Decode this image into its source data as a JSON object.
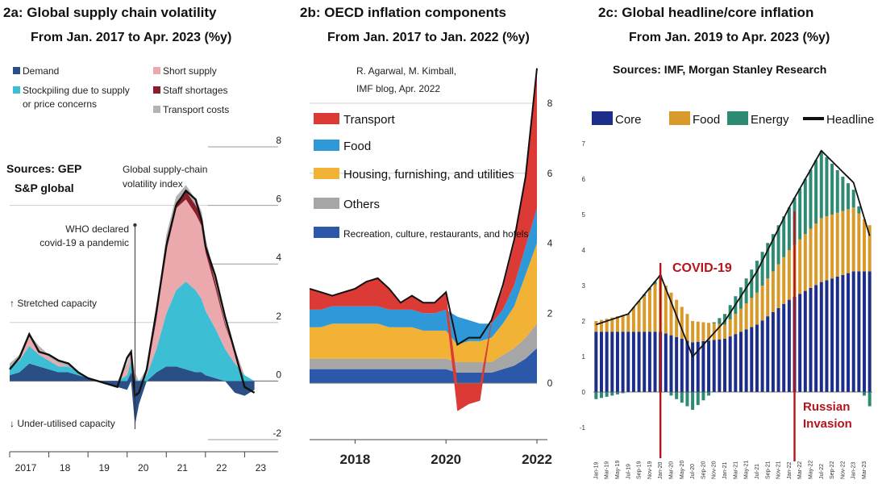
{
  "panels": [
    {
      "title": "2a: Global supply chain volatility",
      "subtitle": "From Jan. 2017 to Apr. 2023  (%y)",
      "sources": [
        "Sources: GEP",
        "S&P global"
      ],
      "index_label": [
        "Global supply-chain",
        "volatility index"
      ],
      "who_label": [
        "WHO declared",
        "covid-19 a pandemic"
      ],
      "stretched_label": "↑ Stretched capacity",
      "underutilised_label": "↓ Under-utilised capacity"
    },
    {
      "title": "2b: OECD inflation components",
      "subtitle": "From Jan. 2017 to Jan. 2022 (%y)",
      "credit": [
        "R. Agarwal, M. Kimball,",
        "IMF blog, Apr. 2022"
      ]
    },
    {
      "title": "2c: Global headline/core inflation",
      "subtitle": "From Jan. 2019 to Apr. 2023 (%y)",
      "sources": "Sources: IMF, Morgan Stanley Research",
      "covid_label": "COVID-19",
      "russia_label": [
        "Russian",
        "Invasion"
      ]
    }
  ],
  "chart_data": [
    {
      "type": "area",
      "stacked": true,
      "ylim": [
        -2,
        8
      ],
      "yticks": [
        "8",
        "6",
        "4",
        "2",
        "0",
        "-2"
      ],
      "xticks": [
        "2017",
        "18",
        "19",
        "20",
        "21",
        "22",
        "23"
      ],
      "legend_placement": "top",
      "colors": {
        "Demand": "#2a4e86",
        "Stockpiling due to supply or price concerns": "#3cbfd4",
        "Short supply": "#eba9ad",
        "Staff shortages": "#8a1f2b",
        "Transport costs": "#b4b4b4",
        "index": "#111111"
      },
      "x": [
        2017.0,
        2017.25,
        2017.5,
        2017.75,
        2018.0,
        2018.25,
        2018.5,
        2018.75,
        2019.0,
        2019.25,
        2019.5,
        2019.75,
        2020.0,
        2020.1,
        2020.2,
        2020.3,
        2020.5,
        2020.75,
        2021.0,
        2021.25,
        2021.5,
        2021.75,
        2021.9,
        2022.0,
        2022.25,
        2022.5,
        2022.75,
        2023.0,
        2023.25
      ],
      "series": [
        {
          "name": "Demand",
          "values": [
            0.2,
            0.3,
            0.6,
            0.5,
            0.4,
            0.3,
            0.3,
            0.2,
            0.1,
            0.0,
            -0.1,
            -0.2,
            -0.3,
            0.3,
            -1.5,
            -0.8,
            0.0,
            0.3,
            0.5,
            0.5,
            0.4,
            0.3,
            0.3,
            0.2,
            0.1,
            0.0,
            -0.4,
            -0.5,
            -0.3
          ]
        },
        {
          "name": "Stockpiling due to supply or price concerns",
          "values": [
            0.3,
            0.4,
            0.6,
            0.4,
            0.3,
            0.2,
            0.2,
            0.1,
            0.0,
            0.0,
            0.0,
            0.0,
            0.2,
            0.4,
            0.1,
            0.0,
            0.2,
            0.8,
            1.8,
            2.6,
            3.0,
            2.8,
            2.5,
            2.2,
            1.7,
            1.1,
            0.6,
            0.2,
            0.0
          ]
        },
        {
          "name": "Short supply",
          "values": [
            0.0,
            0.1,
            0.3,
            0.2,
            0.1,
            0.1,
            0.0,
            0.0,
            0.0,
            0.0,
            0.0,
            0.0,
            0.3,
            0.3,
            0.2,
            0.0,
            0.1,
            1.0,
            2.3,
            2.8,
            2.8,
            2.6,
            2.5,
            2.0,
            1.4,
            0.8,
            0.4,
            0.0,
            0.0
          ]
        },
        {
          "name": "Staff shortages",
          "values": [
            0,
            0,
            0,
            0,
            0,
            0,
            0,
            0,
            0,
            0,
            0,
            0,
            0,
            0,
            0,
            0,
            0,
            0.1,
            0.2,
            0.2,
            0.3,
            0.3,
            0.3,
            0.3,
            0.2,
            0.1,
            0.0,
            0.0,
            0.0
          ]
        },
        {
          "name": "Transport costs",
          "values": [
            0.1,
            0.1,
            0.1,
            0.1,
            0.1,
            0.1,
            0.1,
            0.0,
            0.0,
            0.0,
            0.0,
            0.0,
            0.1,
            0.1,
            0.0,
            0.0,
            0.1,
            0.2,
            0.2,
            0.2,
            0.2,
            0.2,
            0.2,
            0.2,
            0.1,
            0.1,
            0.1,
            0.0,
            0.0
          ]
        }
      ],
      "line": {
        "name": "Global supply-chain volatility index",
        "values": [
          0.4,
          0.8,
          1.6,
          1.0,
          0.9,
          0.7,
          0.6,
          0.3,
          0.1,
          0.0,
          -0.1,
          -0.2,
          0.8,
          1.0,
          -0.5,
          -0.4,
          0.4,
          2.4,
          4.6,
          6.0,
          6.5,
          6.2,
          5.5,
          4.6,
          3.6,
          2.2,
          1.0,
          -0.2,
          -0.4
        ]
      },
      "covid_marker_x": 2020.2
    },
    {
      "type": "area",
      "stacked": true,
      "ylim": [
        -1,
        9
      ],
      "yticks": [
        "8",
        "6",
        "4",
        "2",
        "0"
      ],
      "xticks": [
        "2018",
        "2020",
        "2022"
      ],
      "legend_placement": "top-left",
      "colors": {
        "Transport": "#dc3a34",
        "Food": "#2f98d8",
        "Housing, furnishing, and utilities": "#f2b236",
        "Others": "#a6a6a6",
        "Recreation, culture, restaurants, and hotels": "#2b58a8"
      },
      "x": [
        2017.0,
        2017.25,
        2017.5,
        2017.75,
        2018.0,
        2018.25,
        2018.5,
        2018.75,
        2019.0,
        2019.25,
        2019.5,
        2019.75,
        2020.0,
        2020.25,
        2020.5,
        2020.75,
        2021.0,
        2021.25,
        2021.5,
        2021.75,
        2022.0
      ],
      "series": [
        {
          "name": "Recreation, culture, restaurants, and hotels",
          "values": [
            0.4,
            0.4,
            0.4,
            0.4,
            0.4,
            0.4,
            0.4,
            0.4,
            0.4,
            0.4,
            0.4,
            0.4,
            0.4,
            0.3,
            0.3,
            0.3,
            0.3,
            0.4,
            0.5,
            0.7,
            1.0
          ]
        },
        {
          "name": "Others",
          "values": [
            0.3,
            0.3,
            0.3,
            0.3,
            0.3,
            0.3,
            0.3,
            0.3,
            0.3,
            0.3,
            0.3,
            0.3,
            0.3,
            0.3,
            0.3,
            0.3,
            0.3,
            0.4,
            0.5,
            0.6,
            0.7
          ]
        },
        {
          "name": "Housing, furnishing, and utilities",
          "values": [
            0.9,
            0.9,
            1.0,
            1.0,
            1.0,
            1.0,
            1.0,
            0.9,
            0.9,
            0.9,
            0.8,
            0.8,
            0.8,
            0.5,
            0.6,
            0.6,
            0.7,
            0.9,
            1.2,
            1.8,
            2.3
          ]
        },
        {
          "name": "Food",
          "values": [
            0.5,
            0.5,
            0.5,
            0.5,
            0.5,
            0.5,
            0.5,
            0.5,
            0.5,
            0.5,
            0.5,
            0.5,
            0.6,
            0.8,
            0.6,
            0.5,
            0.4,
            0.4,
            0.6,
            0.8,
            1.0
          ]
        },
        {
          "name": "Transport",
          "values": [
            0.6,
            0.5,
            0.3,
            0.4,
            0.5,
            0.7,
            0.8,
            0.6,
            0.2,
            0.4,
            0.3,
            0.3,
            0.5,
            -0.8,
            -0.6,
            -0.5,
            0.1,
            0.6,
            1.2,
            2.0,
            4.0
          ]
        }
      ],
      "total": [
        2.7,
        2.6,
        2.5,
        2.6,
        2.7,
        2.9,
        3.0,
        2.7,
        2.3,
        2.5,
        2.3,
        2.3,
        2.6,
        1.1,
        1.3,
        1.3,
        1.8,
        2.8,
        4.1,
        5.9,
        9.0
      ]
    },
    {
      "type": "bar",
      "stacked": true,
      "ylim": [
        -1,
        7
      ],
      "yticks": [
        "7",
        "6",
        "5",
        "4",
        "3",
        "2",
        "1",
        "0",
        "-1"
      ],
      "xtick_labels": [
        "Jan-19",
        "Mar-19",
        "May-19",
        "Jul-19",
        "Sep-19",
        "Nov-19",
        "Jan-20",
        "Mar-20",
        "May-20",
        "Jul-20",
        "Sep-20",
        "Nov-20",
        "Jan-21",
        "Mar-21",
        "May-21",
        "Jul-21",
        "Sep-21",
        "Nov-21",
        "Jan-22",
        "Mar-22",
        "May-22",
        "Jul-22",
        "Sep-22",
        "Nov-22",
        "Jan-23",
        "Mar-23"
      ],
      "legend_placement": "top",
      "colors": {
        "Core": "#1d2e8a",
        "Food": "#d99a2a",
        "Energy": "#2e8b73",
        "Headline": "#111111"
      },
      "x": [
        "Jan-19",
        "Jul-19",
        "Jan-20",
        "Jul-20",
        "Jan-21",
        "Jul-21",
        "Jan-22",
        "Jul-22",
        "Jan-23",
        "Apr-23"
      ],
      "series": [
        {
          "name": "Core",
          "values": [
            1.7,
            1.7,
            1.7,
            1.4,
            1.5,
            1.9,
            2.6,
            3.1,
            3.4,
            3.4
          ]
        },
        {
          "name": "Food",
          "values": [
            0.3,
            0.5,
            1.5,
            0.6,
            0.4,
            0.9,
            1.4,
            1.8,
            1.8,
            1.3
          ]
        },
        {
          "name": "Energy",
          "values": [
            -0.2,
            0.0,
            0.1,
            -0.5,
            0.3,
            0.9,
            1.2,
            1.9,
            0.5,
            -0.4
          ]
        }
      ],
      "line": {
        "name": "Headline",
        "values": [
          1.9,
          2.2,
          3.3,
          1.0,
          2.0,
          3.4,
          5.2,
          6.8,
          5.9,
          4.4
        ]
      },
      "covid_x": "Jan-20",
      "invasion_x": "Feb-22"
    }
  ]
}
